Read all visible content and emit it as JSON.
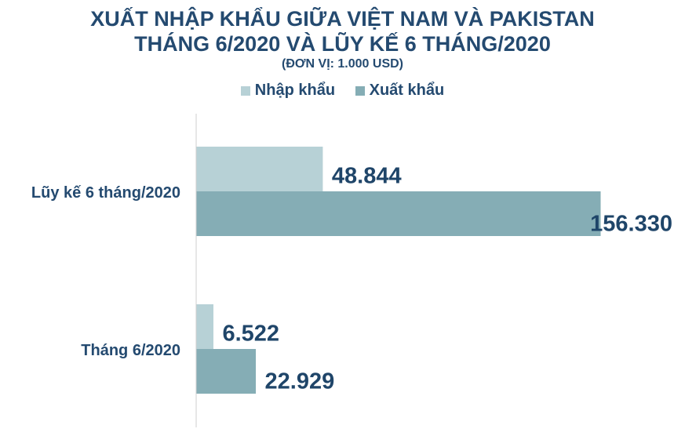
{
  "title_line1": "XUẤT NHẬP KHẨU GIỮA VIỆT NAM VÀ PAKISTAN",
  "title_line2": "THÁNG 6/2020 VÀ LŨY KẾ 6 THÁNG/2020",
  "subtitle": "(ĐƠN VỊ: 1.000 USD)",
  "chart_data": {
    "type": "bar",
    "orientation": "horizontal",
    "categories": [
      "Lũy kế 6 tháng/2020",
      "Tháng 6/2020"
    ],
    "series": [
      {
        "name": "Nhập khẩu",
        "values": [
          48844,
          6522
        ],
        "labels": [
          "48.844",
          "6.522"
        ],
        "color": "#b7d1d6"
      },
      {
        "name": "Xuất khẩu",
        "values": [
          156330,
          22929
        ],
        "labels": [
          "156.330",
          "22.929"
        ],
        "color": "#85adb5"
      }
    ],
    "xlim": [
      0,
      156330
    ],
    "grid": false,
    "legend_position": "top"
  }
}
